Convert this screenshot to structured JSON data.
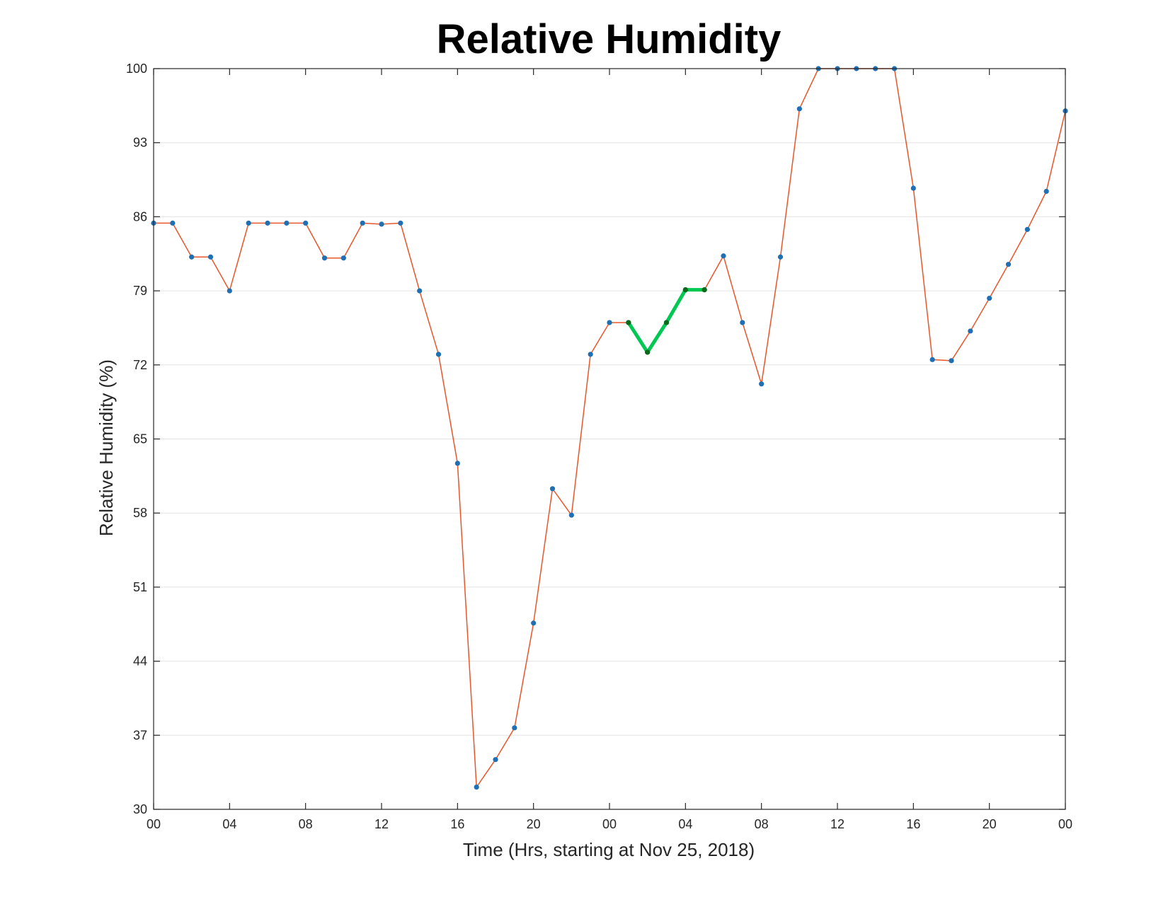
{
  "chart_data": {
    "type": "line",
    "title": "Relative Humidity",
    "xlabel": "Time (Hrs, starting at Nov 25, 2018)",
    "ylabel": "Relative Humidity (%)",
    "ylim": [
      30,
      100
    ],
    "xlim": [
      0,
      48
    ],
    "grid": "horizontal",
    "yticks": [
      30,
      37,
      44,
      51,
      58,
      65,
      72,
      79,
      86,
      93,
      100
    ],
    "ytick_labels": [
      "30",
      "37",
      "44",
      "51",
      "58",
      "65",
      "72",
      "79",
      "86",
      "93",
      "100"
    ],
    "xticks": [
      0,
      4,
      8,
      12,
      16,
      20,
      24,
      28,
      32,
      36,
      40,
      44,
      48
    ],
    "xtick_labels": [
      "00",
      "04",
      "08",
      "12",
      "16",
      "20",
      "00",
      "04",
      "08",
      "12",
      "16",
      "20",
      "00"
    ],
    "series": [
      {
        "color": "#e8562a",
        "marker_color": "#1f6fb4",
        "x": [
          0,
          1,
          2,
          3,
          4,
          5,
          6,
          7,
          8,
          9,
          10,
          11,
          12,
          13,
          14,
          15,
          16,
          17,
          18,
          19,
          20,
          21,
          22,
          23,
          24,
          25,
          26,
          27,
          28,
          29,
          30,
          31,
          32,
          33,
          34,
          35,
          36,
          37,
          38,
          39,
          40,
          41,
          42,
          43,
          44,
          45,
          46,
          47,
          48
        ],
        "values": [
          85.4,
          85.4,
          82.2,
          82.2,
          79.0,
          85.4,
          85.4,
          85.4,
          85.4,
          82.1,
          82.1,
          85.4,
          85.3,
          85.4,
          79.0,
          73.0,
          62.7,
          32.1,
          34.7,
          37.7,
          47.6,
          60.3,
          57.8,
          73.0,
          76.0,
          76.0,
          73.2,
          76.0,
          79.1,
          79.1,
          82.3,
          76.0,
          70.2,
          82.2,
          96.2,
          100.0,
          100.0,
          100.0,
          100.0,
          100.0,
          88.7,
          72.5,
          72.4,
          75.2,
          78.3,
          81.5,
          84.8,
          88.4,
          96.0
        ]
      },
      {
        "color": "#00c853",
        "marker_color": "#0a6b17",
        "x": [
          25,
          26,
          27,
          28,
          29
        ],
        "values": [
          76.0,
          73.2,
          76.0,
          79.1,
          79.1
        ]
      }
    ]
  }
}
